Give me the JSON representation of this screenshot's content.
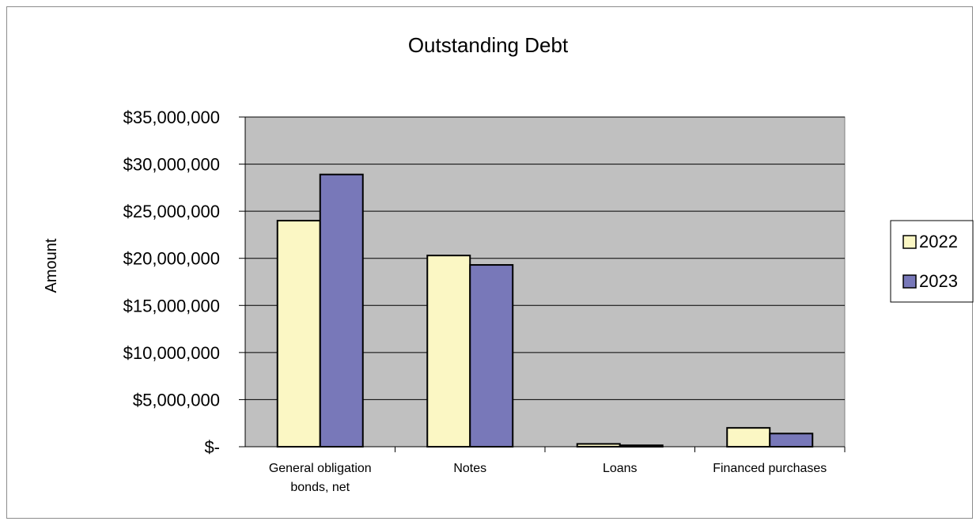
{
  "chart_data": {
    "type": "bar",
    "title": "Outstanding Debt",
    "ylabel": "Amount",
    "xlabel": "",
    "categories": [
      "General obligation bonds, net",
      "Notes",
      "Loans",
      "Financed purchases"
    ],
    "category_lines": [
      [
        "General obligation",
        "bonds, net"
      ],
      [
        "Notes"
      ],
      [
        "Loans"
      ],
      [
        "Financed purchases"
      ]
    ],
    "series": [
      {
        "name": "2022",
        "color": "#fbf7c4",
        "values": [
          24000000,
          20300000,
          300000,
          2000000
        ]
      },
      {
        "name": "2023",
        "color": "#7878b9",
        "values": [
          28900000,
          19300000,
          150000,
          1400000
        ]
      }
    ],
    "ylim": [
      0,
      35000000
    ],
    "yticks": [
      0,
      5000000,
      10000000,
      15000000,
      20000000,
      25000000,
      30000000,
      35000000
    ],
    "ytick_labels": [
      "$-",
      "$5,000,000",
      "$10,000,000",
      "$15,000,000",
      "$20,000,000",
      "$25,000,000",
      "$30,000,000",
      "$35,000,000"
    ],
    "plot_background": "#c0c0c0",
    "grid": true,
    "legend_position": "right"
  }
}
